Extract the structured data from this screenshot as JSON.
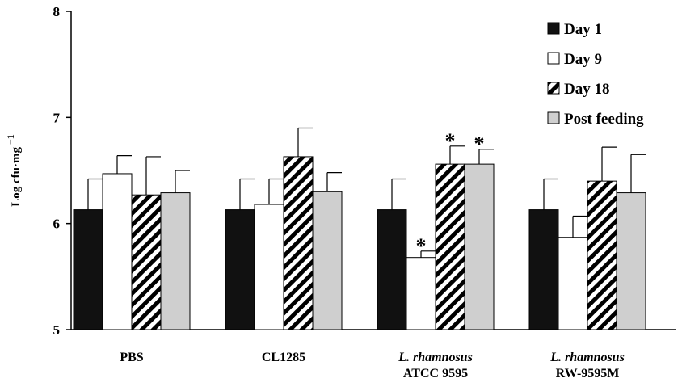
{
  "chart_data": {
    "type": "bar",
    "title": "",
    "xlabel": "",
    "ylabel": "Log cfu·mg",
    "ylabel_superscript": "−1",
    "ylim": [
      5,
      8
    ],
    "yticks": [
      "5",
      "6",
      "7",
      "8"
    ],
    "grid": false,
    "legend_position": "top-right",
    "categories": [
      {
        "line1": "PBS",
        "line1_italic": false,
        "line2": ""
      },
      {
        "line1": "CL1285",
        "line1_italic": false,
        "line2": ""
      },
      {
        "line1": "L. rhamnosus",
        "line1_italic": true,
        "line2": "ATCC 9595"
      },
      {
        "line1": "L. rhamnosus",
        "line1_italic": true,
        "line2": "RW-9595M"
      }
    ],
    "series": [
      {
        "name": "Day 1",
        "style": "solid-black",
        "values": [
          6.13,
          6.13,
          6.13,
          6.13
        ],
        "errors": [
          0.29,
          0.29,
          0.29,
          0.29
        ],
        "significant": [
          false,
          false,
          false,
          false
        ]
      },
      {
        "name": "Day 9",
        "style": "white",
        "values": [
          6.47,
          6.18,
          5.68,
          5.87
        ],
        "errors": [
          0.17,
          0.24,
          0.06,
          0.2
        ],
        "significant": [
          false,
          false,
          true,
          false
        ]
      },
      {
        "name": "Day 18",
        "style": "diagonal-stripes",
        "values": [
          6.27,
          6.63,
          6.56,
          6.4
        ],
        "errors": [
          0.36,
          0.27,
          0.17,
          0.32
        ],
        "significant": [
          false,
          false,
          true,
          false
        ]
      },
      {
        "name": "Post feeding",
        "style": "light-gray",
        "values": [
          6.29,
          6.3,
          6.56,
          6.29
        ],
        "errors": [
          0.21,
          0.18,
          0.14,
          0.36
        ],
        "significant": [
          false,
          false,
          true,
          false
        ]
      }
    ],
    "significance_marker": "*"
  }
}
